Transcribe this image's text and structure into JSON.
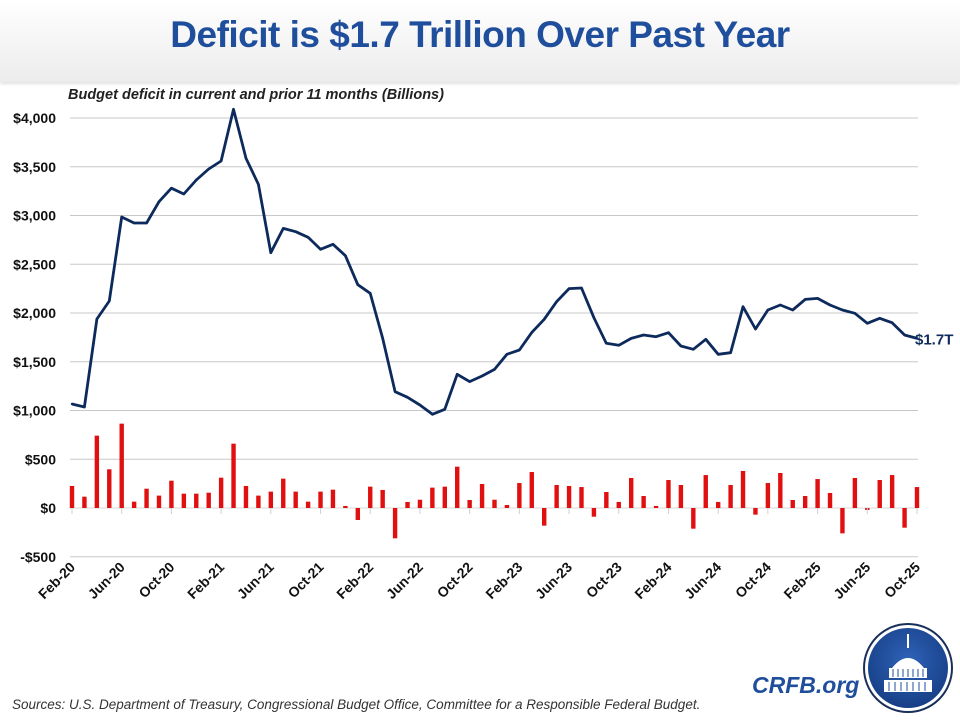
{
  "header": {
    "title": "Deficit is $1.7 Trillion Over Past Year"
  },
  "footer": {
    "source": "Sources: U.S. Department of Treasury, Congressional Budget Office, Committee for a Responsible Federal Budget.",
    "brand": "CRFB.org"
  },
  "colors": {
    "title": "#1f4e9c",
    "line": "#0d2a5c",
    "bars": "#e01010",
    "grid": "#c8c8c8"
  },
  "chart_data": {
    "type": "bar+line",
    "title": "Deficit is $1.7 Trillion Over Past Year",
    "subtitle": "Budget deficit in current and prior 11 months (Billions)",
    "xlabel": "",
    "ylabel": "",
    "ylim": [
      -500,
      4000
    ],
    "ytick_values": [
      -500,
      0,
      500,
      1000,
      1500,
      2000,
      2500,
      3000,
      3500,
      4000
    ],
    "ytick_labels": [
      "-$500",
      "$0",
      "$500",
      "$1,000",
      "$1,500",
      "$2,000",
      "$2,500",
      "$3,000",
      "$3,500",
      "$4,000"
    ],
    "grid": true,
    "legend": "none",
    "xtick_labels": [
      "Feb-20",
      "Jun-20",
      "Oct-20",
      "Feb-21",
      "Jun-21",
      "Oct-21",
      "Feb-22",
      "Jun-22",
      "Oct-22",
      "Feb-23",
      "Jun-23",
      "Oct-23",
      "Feb-24",
      "Jun-24",
      "Oct-24",
      "Feb-25",
      "Jun-25",
      "Oct-25"
    ],
    "x_start": "Feb-20",
    "x_end": "Oct-25",
    "end_label": "$1.7T",
    "series": [
      {
        "type": "line",
        "values": [
          1067,
          1036,
          1938,
          2123,
          2985,
          2923,
          2923,
          3142,
          3280,
          3221,
          3364,
          3477,
          3559,
          4089,
          3587,
          3320,
          2618,
          2868,
          2834,
          2776,
          2653,
          2705,
          2588,
          2290,
          2202,
          1740,
          1193,
          1135,
          1056,
          961,
          1012,
          1371,
          1296,
          1354,
          1422,
          1576,
          1620,
          1801,
          1935,
          2116,
          2250,
          2256,
          1952,
          1689,
          1669,
          1740,
          1774,
          1757,
          1798,
          1662,
          1628,
          1730,
          1576,
          1593,
          2065,
          1836,
          2031,
          2082,
          2031,
          2140,
          2150,
          2082,
          2031,
          1997,
          1894,
          1946,
          1901,
          1774,
          1740
        ]
      },
      {
        "type": "bar",
        "values": [
          226,
          116,
          742,
          397,
          865,
          65,
          198,
          127,
          280,
          147,
          147,
          157,
          311,
          660,
          226,
          127,
          168,
          301,
          168,
          65,
          168,
          188,
          21,
          -123,
          219,
          185,
          -311,
          62,
          85,
          209,
          219,
          424,
          82,
          246,
          85,
          31,
          256,
          369,
          -181,
          236,
          226,
          215,
          -89,
          164,
          62,
          308,
          123,
          21,
          287,
          236,
          -212,
          338,
          62,
          236,
          380,
          -68,
          256,
          359,
          82,
          123,
          297,
          154,
          -260,
          308,
          -20,
          287,
          338,
          -202,
          215
        ]
      }
    ]
  }
}
